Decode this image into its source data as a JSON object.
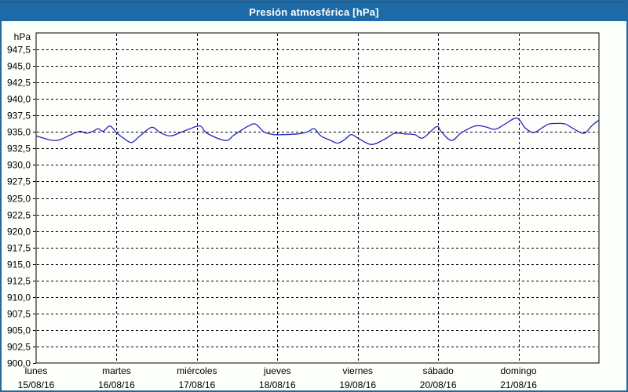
{
  "window": {
    "title": "Presión atmosférica [hPa]"
  },
  "colors": {
    "titlebar_bg": "#1d6ba6",
    "titlebar_text": "#ffffff",
    "frame_border": "#26689c",
    "plot_bg": "#fefffd",
    "grid": "#000000",
    "line": "#2424bb"
  },
  "chart_data": {
    "type": "line",
    "title": "Presión atmosférica [hPa]",
    "unit_label": "hPa",
    "grid": {
      "dashed": true,
      "color": "#000000"
    },
    "legend": "none",
    "y_axis": {
      "top": 950.0,
      "bottom": 900.0,
      "tick_step": 2.5,
      "ticks": [
        {
          "value": 947.5,
          "label": "947,5"
        },
        {
          "value": 945.0,
          "label": "945,0"
        },
        {
          "value": 942.5,
          "label": "942,5"
        },
        {
          "value": 940.0,
          "label": "940,0"
        },
        {
          "value": 937.5,
          "label": "937,5"
        },
        {
          "value": 935.0,
          "label": "935,0"
        },
        {
          "value": 932.5,
          "label": "932,5"
        },
        {
          "value": 930.0,
          "label": "930,0"
        },
        {
          "value": 927.5,
          "label": "927,5"
        },
        {
          "value": 925.0,
          "label": "925,0"
        },
        {
          "value": 922.5,
          "label": "922,5"
        },
        {
          "value": 920.0,
          "label": "920,0"
        },
        {
          "value": 917.5,
          "label": "917,5"
        },
        {
          "value": 915.0,
          "label": "915,0"
        },
        {
          "value": 912.5,
          "label": "912,5"
        },
        {
          "value": 910.0,
          "label": "910,0"
        },
        {
          "value": 907.5,
          "label": "907,5"
        },
        {
          "value": 905.0,
          "label": "905,0"
        },
        {
          "value": 902.5,
          "label": "902,5"
        },
        {
          "value": 900.0,
          "label": "900,0"
        }
      ]
    },
    "x_axis": {
      "total_hours": 168,
      "days": [
        {
          "name": "lunes",
          "date": "15/08/16"
        },
        {
          "name": "martes",
          "date": "16/08/16"
        },
        {
          "name": "miércoles",
          "date": "17/08/16"
        },
        {
          "name": "jueves",
          "date": "18/08/16"
        },
        {
          "name": "viernes",
          "date": "19/08/16"
        },
        {
          "name": "sábado",
          "date": "20/08/16"
        },
        {
          "name": "domingo",
          "date": "21/08/16"
        }
      ]
    },
    "series": [
      {
        "name": "Presión atmosférica",
        "color": "#2424bb",
        "points": [
          [
            0,
            934.4
          ],
          [
            2,
            934.1
          ],
          [
            4,
            933.8
          ],
          [
            6,
            933.7
          ],
          [
            8,
            934.0
          ],
          [
            10,
            934.5
          ],
          [
            13,
            935.1
          ],
          [
            15,
            934.8
          ],
          [
            17,
            935.1
          ],
          [
            18.5,
            935.5
          ],
          [
            20,
            935.1
          ],
          [
            22,
            935.9
          ],
          [
            24,
            934.9
          ],
          [
            26,
            934.1
          ],
          [
            28.5,
            933.4
          ],
          [
            31,
            934.4
          ],
          [
            34.5,
            935.7
          ],
          [
            37,
            934.9
          ],
          [
            40,
            934.4
          ],
          [
            43,
            934.9
          ],
          [
            46,
            935.5
          ],
          [
            49,
            935.9
          ],
          [
            51,
            934.8
          ],
          [
            56.5,
            933.7
          ],
          [
            59,
            934.5
          ],
          [
            63,
            935.8
          ],
          [
            65.5,
            936.2
          ],
          [
            68,
            935.0
          ],
          [
            71,
            934.6
          ],
          [
            73.5,
            934.6
          ],
          [
            78,
            934.7
          ],
          [
            81,
            935.0
          ],
          [
            83,
            935.5
          ],
          [
            85,
            934.4
          ],
          [
            88,
            933.7
          ],
          [
            90,
            933.3
          ],
          [
            92,
            933.8
          ],
          [
            94,
            934.6
          ],
          [
            96,
            934.1
          ],
          [
            100,
            933.1
          ],
          [
            104,
            933.9
          ],
          [
            107,
            934.8
          ],
          [
            110,
            934.7
          ],
          [
            113,
            934.6
          ],
          [
            115.5,
            934.1
          ],
          [
            119.5,
            935.8
          ],
          [
            121,
            935.0
          ],
          [
            124,
            933.7
          ],
          [
            127,
            934.9
          ],
          [
            131,
            935.9
          ],
          [
            134,
            935.8
          ],
          [
            137,
            935.4
          ],
          [
            140,
            936.2
          ],
          [
            143.5,
            937.1
          ],
          [
            146,
            935.6
          ],
          [
            148.5,
            934.9
          ],
          [
            151,
            935.6
          ],
          [
            153,
            936.2
          ],
          [
            156,
            936.3
          ],
          [
            158,
            936.2
          ],
          [
            160,
            935.6
          ],
          [
            162.5,
            934.9
          ],
          [
            164,
            934.9
          ],
          [
            166,
            936.0
          ],
          [
            168,
            936.8
          ]
        ]
      }
    ]
  }
}
